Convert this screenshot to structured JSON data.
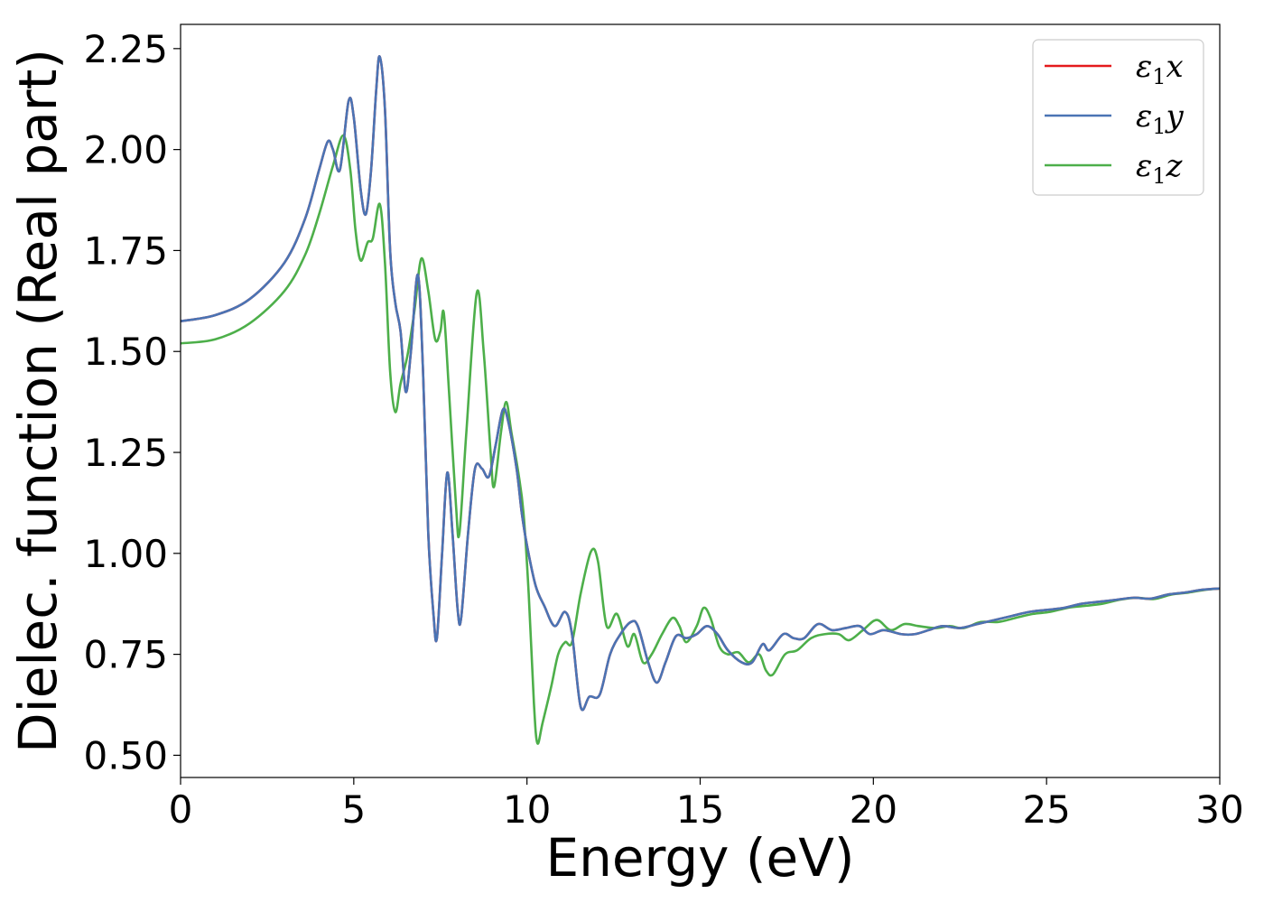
{
  "chart_data": {
    "type": "line",
    "xlabel": "Energy (eV)",
    "ylabel": "Dielec. function (Real part)",
    "xlim": [
      0,
      30
    ],
    "ylim": [
      0.445,
      2.31
    ],
    "xticks": [
      0,
      5,
      10,
      15,
      20,
      25,
      30
    ],
    "yticks": [
      0.5,
      0.75,
      1.0,
      1.25,
      1.5,
      1.75,
      2.0,
      2.25
    ],
    "grid": false,
    "legend_position": "top-right",
    "series": [
      {
        "name": "ε₁x",
        "label_base": "ε",
        "label_sub": "1",
        "label_var": "x",
        "color": "#e41a1c",
        "points": [
          [
            0,
            1.575
          ],
          [
            1,
            1.59
          ],
          [
            2,
            1.63
          ],
          [
            3,
            1.72
          ],
          [
            3.6,
            1.83
          ],
          [
            4.0,
            1.95
          ],
          [
            4.25,
            2.02
          ],
          [
            4.4,
            2.0
          ],
          [
            4.6,
            1.95
          ],
          [
            4.85,
            2.12
          ],
          [
            5.0,
            2.08
          ],
          [
            5.2,
            1.9
          ],
          [
            5.35,
            1.84
          ],
          [
            5.5,
            1.95
          ],
          [
            5.65,
            2.15
          ],
          [
            5.75,
            2.23
          ],
          [
            5.9,
            2.1
          ],
          [
            6.05,
            1.75
          ],
          [
            6.2,
            1.62
          ],
          [
            6.35,
            1.55
          ],
          [
            6.5,
            1.4
          ],
          [
            6.65,
            1.5
          ],
          [
            6.85,
            1.69
          ],
          [
            7.0,
            1.45
          ],
          [
            7.15,
            1.05
          ],
          [
            7.3,
            0.85
          ],
          [
            7.4,
            0.79
          ],
          [
            7.55,
            1.0
          ],
          [
            7.7,
            1.2
          ],
          [
            7.85,
            1.05
          ],
          [
            8.0,
            0.86
          ],
          [
            8.1,
            0.84
          ],
          [
            8.3,
            1.05
          ],
          [
            8.5,
            1.21
          ],
          [
            8.7,
            1.21
          ],
          [
            8.9,
            1.19
          ],
          [
            9.1,
            1.27
          ],
          [
            9.3,
            1.355
          ],
          [
            9.45,
            1.33
          ],
          [
            9.7,
            1.21
          ],
          [
            9.85,
            1.1
          ],
          [
            10.0,
            1.02
          ],
          [
            10.25,
            0.92
          ],
          [
            10.5,
            0.87
          ],
          [
            10.8,
            0.82
          ],
          [
            11.1,
            0.855
          ],
          [
            11.3,
            0.8
          ],
          [
            11.55,
            0.62
          ],
          [
            11.8,
            0.645
          ],
          [
            12.1,
            0.65
          ],
          [
            12.4,
            0.75
          ],
          [
            12.7,
            0.8
          ],
          [
            13.0,
            0.83
          ],
          [
            13.2,
            0.82
          ],
          [
            13.5,
            0.73
          ],
          [
            13.75,
            0.68
          ],
          [
            14.0,
            0.73
          ],
          [
            14.3,
            0.795
          ],
          [
            14.6,
            0.79
          ],
          [
            14.9,
            0.8
          ],
          [
            15.2,
            0.82
          ],
          [
            15.5,
            0.8
          ],
          [
            15.8,
            0.76
          ],
          [
            16.2,
            0.73
          ],
          [
            16.5,
            0.73
          ],
          [
            16.8,
            0.775
          ],
          [
            17.0,
            0.76
          ],
          [
            17.4,
            0.8
          ],
          [
            17.7,
            0.79
          ],
          [
            18.0,
            0.79
          ],
          [
            18.4,
            0.825
          ],
          [
            18.8,
            0.81
          ],
          [
            19.2,
            0.815
          ],
          [
            19.6,
            0.82
          ],
          [
            19.9,
            0.8
          ],
          [
            20.3,
            0.81
          ],
          [
            20.8,
            0.8
          ],
          [
            21.2,
            0.8
          ],
          [
            21.6,
            0.81
          ],
          [
            22.0,
            0.82
          ],
          [
            22.5,
            0.815
          ],
          [
            23.0,
            0.825
          ],
          [
            23.5,
            0.835
          ],
          [
            24.0,
            0.845
          ],
          [
            24.5,
            0.855
          ],
          [
            25.0,
            0.86
          ],
          [
            25.5,
            0.865
          ],
          [
            26.0,
            0.875
          ],
          [
            26.5,
            0.88
          ],
          [
            27.0,
            0.885
          ],
          [
            27.5,
            0.89
          ],
          [
            28.0,
            0.888
          ],
          [
            28.5,
            0.898
          ],
          [
            29.0,
            0.903
          ],
          [
            29.5,
            0.91
          ],
          [
            30.0,
            0.913
          ]
        ]
      },
      {
        "name": "ε₁y",
        "label_base": "ε",
        "label_sub": "1",
        "label_var": "y",
        "color": "#4a74b4",
        "points": [
          [
            0,
            1.575
          ],
          [
            1,
            1.59
          ],
          [
            2,
            1.63
          ],
          [
            3,
            1.72
          ],
          [
            3.6,
            1.83
          ],
          [
            4.0,
            1.95
          ],
          [
            4.25,
            2.02
          ],
          [
            4.4,
            2.0
          ],
          [
            4.6,
            1.95
          ],
          [
            4.85,
            2.12
          ],
          [
            5.0,
            2.08
          ],
          [
            5.2,
            1.9
          ],
          [
            5.35,
            1.84
          ],
          [
            5.5,
            1.95
          ],
          [
            5.65,
            2.15
          ],
          [
            5.75,
            2.23
          ],
          [
            5.9,
            2.1
          ],
          [
            6.05,
            1.75
          ],
          [
            6.2,
            1.62
          ],
          [
            6.35,
            1.55
          ],
          [
            6.5,
            1.4
          ],
          [
            6.65,
            1.5
          ],
          [
            6.85,
            1.69
          ],
          [
            7.0,
            1.45
          ],
          [
            7.15,
            1.05
          ],
          [
            7.3,
            0.85
          ],
          [
            7.4,
            0.79
          ],
          [
            7.55,
            1.0
          ],
          [
            7.7,
            1.2
          ],
          [
            7.85,
            1.05
          ],
          [
            8.0,
            0.86
          ],
          [
            8.1,
            0.84
          ],
          [
            8.3,
            1.05
          ],
          [
            8.5,
            1.21
          ],
          [
            8.7,
            1.21
          ],
          [
            8.9,
            1.19
          ],
          [
            9.1,
            1.27
          ],
          [
            9.3,
            1.355
          ],
          [
            9.45,
            1.33
          ],
          [
            9.7,
            1.21
          ],
          [
            9.85,
            1.1
          ],
          [
            10.0,
            1.02
          ],
          [
            10.25,
            0.92
          ],
          [
            10.5,
            0.87
          ],
          [
            10.8,
            0.82
          ],
          [
            11.1,
            0.855
          ],
          [
            11.3,
            0.8
          ],
          [
            11.55,
            0.62
          ],
          [
            11.8,
            0.645
          ],
          [
            12.1,
            0.65
          ],
          [
            12.4,
            0.75
          ],
          [
            12.7,
            0.8
          ],
          [
            13.0,
            0.83
          ],
          [
            13.2,
            0.82
          ],
          [
            13.5,
            0.73
          ],
          [
            13.75,
            0.68
          ],
          [
            14.0,
            0.73
          ],
          [
            14.3,
            0.795
          ],
          [
            14.6,
            0.79
          ],
          [
            14.9,
            0.8
          ],
          [
            15.2,
            0.82
          ],
          [
            15.5,
            0.8
          ],
          [
            15.8,
            0.76
          ],
          [
            16.2,
            0.73
          ],
          [
            16.5,
            0.73
          ],
          [
            16.8,
            0.775
          ],
          [
            17.0,
            0.76
          ],
          [
            17.4,
            0.8
          ],
          [
            17.7,
            0.79
          ],
          [
            18.0,
            0.79
          ],
          [
            18.4,
            0.825
          ],
          [
            18.8,
            0.81
          ],
          [
            19.2,
            0.815
          ],
          [
            19.6,
            0.82
          ],
          [
            19.9,
            0.8
          ],
          [
            20.3,
            0.81
          ],
          [
            20.8,
            0.8
          ],
          [
            21.2,
            0.8
          ],
          [
            21.6,
            0.81
          ],
          [
            22.0,
            0.82
          ],
          [
            22.5,
            0.815
          ],
          [
            23.0,
            0.825
          ],
          [
            23.5,
            0.835
          ],
          [
            24.0,
            0.845
          ],
          [
            24.5,
            0.855
          ],
          [
            25.0,
            0.86
          ],
          [
            25.5,
            0.865
          ],
          [
            26.0,
            0.875
          ],
          [
            26.5,
            0.88
          ],
          [
            27.0,
            0.885
          ],
          [
            27.5,
            0.89
          ],
          [
            28.0,
            0.888
          ],
          [
            28.5,
            0.898
          ],
          [
            29.0,
            0.903
          ],
          [
            29.5,
            0.91
          ],
          [
            30.0,
            0.913
          ]
        ]
      },
      {
        "name": "ε₁z",
        "label_base": "ε",
        "label_sub": "1",
        "label_var": "z",
        "color": "#4daf4a",
        "points": [
          [
            0,
            1.52
          ],
          [
            1,
            1.53
          ],
          [
            2,
            1.57
          ],
          [
            3,
            1.65
          ],
          [
            3.6,
            1.74
          ],
          [
            4.0,
            1.84
          ],
          [
            4.4,
            1.96
          ],
          [
            4.7,
            2.035
          ],
          [
            4.9,
            1.95
          ],
          [
            5.05,
            1.8
          ],
          [
            5.2,
            1.725
          ],
          [
            5.4,
            1.77
          ],
          [
            5.55,
            1.78
          ],
          [
            5.75,
            1.865
          ],
          [
            5.9,
            1.72
          ],
          [
            6.05,
            1.45
          ],
          [
            6.2,
            1.35
          ],
          [
            6.35,
            1.42
          ],
          [
            6.55,
            1.49
          ],
          [
            6.75,
            1.6
          ],
          [
            6.95,
            1.73
          ],
          [
            7.15,
            1.65
          ],
          [
            7.35,
            1.53
          ],
          [
            7.5,
            1.55
          ],
          [
            7.6,
            1.595
          ],
          [
            7.75,
            1.4
          ],
          [
            7.95,
            1.12
          ],
          [
            8.05,
            1.05
          ],
          [
            8.25,
            1.3
          ],
          [
            8.55,
            1.645
          ],
          [
            8.75,
            1.5
          ],
          [
            8.95,
            1.25
          ],
          [
            9.05,
            1.165
          ],
          [
            9.25,
            1.3
          ],
          [
            9.4,
            1.375
          ],
          [
            9.55,
            1.3
          ],
          [
            9.75,
            1.2
          ],
          [
            9.9,
            1.1
          ],
          [
            10.05,
            0.9
          ],
          [
            10.2,
            0.63
          ],
          [
            10.3,
            0.53
          ],
          [
            10.45,
            0.58
          ],
          [
            10.7,
            0.67
          ],
          [
            10.9,
            0.75
          ],
          [
            11.1,
            0.78
          ],
          [
            11.3,
            0.78
          ],
          [
            11.55,
            0.9
          ],
          [
            11.85,
            1.005
          ],
          [
            12.05,
            0.98
          ],
          [
            12.3,
            0.82
          ],
          [
            12.6,
            0.85
          ],
          [
            12.9,
            0.77
          ],
          [
            13.1,
            0.8
          ],
          [
            13.35,
            0.73
          ],
          [
            13.6,
            0.75
          ],
          [
            13.9,
            0.8
          ],
          [
            14.2,
            0.84
          ],
          [
            14.4,
            0.82
          ],
          [
            14.6,
            0.78
          ],
          [
            14.9,
            0.82
          ],
          [
            15.1,
            0.865
          ],
          [
            15.3,
            0.84
          ],
          [
            15.55,
            0.77
          ],
          [
            15.8,
            0.75
          ],
          [
            16.1,
            0.755
          ],
          [
            16.4,
            0.73
          ],
          [
            16.7,
            0.75
          ],
          [
            16.9,
            0.71
          ],
          [
            17.1,
            0.7
          ],
          [
            17.45,
            0.75
          ],
          [
            17.8,
            0.76
          ],
          [
            18.2,
            0.79
          ],
          [
            18.6,
            0.8
          ],
          [
            19.0,
            0.8
          ],
          [
            19.3,
            0.785
          ],
          [
            19.7,
            0.81
          ],
          [
            20.1,
            0.835
          ],
          [
            20.5,
            0.81
          ],
          [
            20.9,
            0.825
          ],
          [
            21.3,
            0.82
          ],
          [
            21.8,
            0.815
          ],
          [
            22.2,
            0.82
          ],
          [
            22.6,
            0.815
          ],
          [
            23.1,
            0.83
          ],
          [
            23.6,
            0.83
          ],
          [
            24.1,
            0.84
          ],
          [
            24.6,
            0.85
          ],
          [
            25.1,
            0.855
          ],
          [
            25.6,
            0.865
          ],
          [
            26.1,
            0.87
          ],
          [
            26.6,
            0.875
          ],
          [
            27.1,
            0.885
          ],
          [
            27.6,
            0.89
          ],
          [
            28.1,
            0.887
          ],
          [
            28.6,
            0.898
          ],
          [
            29.1,
            0.903
          ],
          [
            29.6,
            0.91
          ],
          [
            30.0,
            0.913
          ]
        ]
      }
    ]
  }
}
